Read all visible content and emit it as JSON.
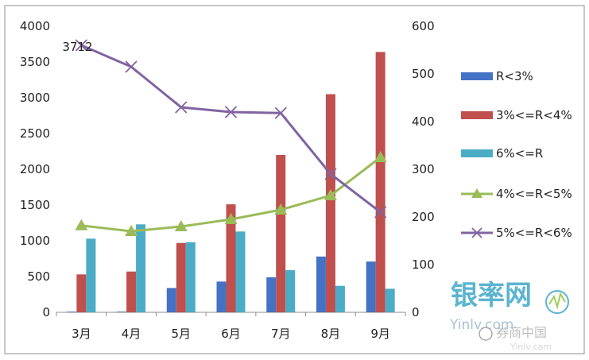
{
  "chart_data": {
    "type": "bar",
    "categories": [
      "3月",
      "4月",
      "5月",
      "6月",
      "7月",
      "8月",
      "9月"
    ],
    "left_axis": {
      "ylim": [
        0,
        4000
      ],
      "ticks": [
        0,
        500,
        1000,
        1500,
        2000,
        2500,
        3000,
        3500,
        4000
      ]
    },
    "right_axis": {
      "ylim": [
        0,
        600
      ],
      "ticks": [
        0,
        100,
        200,
        300,
        400,
        500,
        600
      ]
    },
    "series": [
      {
        "name": "R<3%",
        "type": "bar",
        "axis": "left",
        "color": "#4472c4",
        "values": [
          10,
          10,
          340,
          430,
          490,
          780,
          710
        ]
      },
      {
        "name": "3%<=R<4%",
        "type": "bar",
        "axis": "left",
        "color": "#c0504d",
        "values": [
          530,
          570,
          970,
          1510,
          2200,
          3050,
          3640
        ]
      },
      {
        "name": "6%<=R",
        "type": "bar",
        "axis": "left",
        "color": "#4bacc6",
        "values": [
          1030,
          1230,
          980,
          1130,
          590,
          370,
          330
        ]
      },
      {
        "name": "4%<=R<5%",
        "type": "line",
        "axis": "right",
        "marker": "triangle",
        "color": "#9bbb59",
        "values": [
          182,
          170,
          180,
          195,
          215,
          245,
          325
        ]
      },
      {
        "name": "5%<=R<6%",
        "type": "line",
        "axis": "right",
        "marker": "x",
        "color": "#8064a2",
        "values": [
          560,
          515,
          430,
          420,
          418,
          290,
          210
        ]
      }
    ],
    "annotations": [
      {
        "text": "3712",
        "category": "3月"
      }
    ],
    "legend_position": "right"
  },
  "watermark": {
    "logo_text": "银率网",
    "logo_domain": "Yinlv.com",
    "credit_text": "券商中国",
    "credit_sub": "Yinlv.com"
  }
}
